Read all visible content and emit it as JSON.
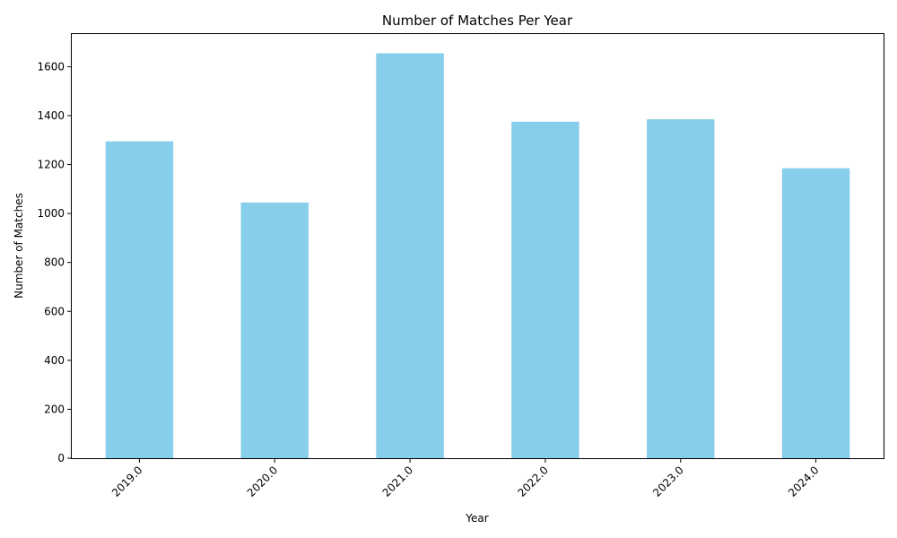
{
  "colors": {
    "bar": "#87ceeb"
  },
  "chart_data": {
    "type": "bar",
    "title": "Number of Matches Per Year",
    "xlabel": "Year",
    "ylabel": "Number of Matches",
    "categories": [
      "2019.0",
      "2020.0",
      "2021.0",
      "2022.0",
      "2023.0",
      "2024.0"
    ],
    "values": [
      1295,
      1045,
      1655,
      1375,
      1385,
      1185
    ],
    "ylim": [
      0,
      1737
    ],
    "yticks": [
      0,
      200,
      400,
      600,
      800,
      1000,
      1200,
      1400,
      1600
    ],
    "ytick_labels": [
      "0",
      "200",
      "400",
      "600",
      "800",
      "1000",
      "1200",
      "1400",
      "1600"
    ],
    "xtick_rotation": 45,
    "grid": false,
    "legend": "none"
  }
}
